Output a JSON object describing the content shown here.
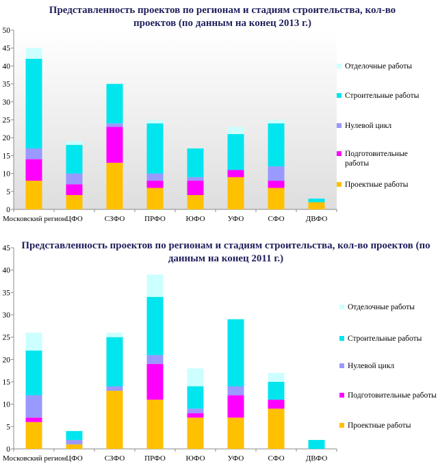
{
  "chart_data": [
    {
      "type": "bar",
      "stacked": true,
      "title": "Представленность  проектов по регионам и стадиям строительства, кол-во проектов  (по данным на конец 2013 г.)",
      "categories": [
        "Московский регион",
        "ЦФО",
        "СЗФО",
        "ПРФО",
        "ЮФО",
        "УФО",
        "СФО",
        "ДВФО"
      ],
      "ylim": [
        0,
        50
      ],
      "yticks": [
        0,
        5,
        10,
        15,
        20,
        25,
        30,
        35,
        40,
        45,
        50
      ],
      "grid": false,
      "legend_position": "right",
      "series": [
        {
          "name": "Проектные работы",
          "color": "#FFC000",
          "values": [
            8,
            4,
            13,
            6,
            4,
            9,
            6,
            2
          ]
        },
        {
          "name": "Подготовительные работы",
          "color": "#FF00FF",
          "values": [
            6,
            3,
            10,
            2,
            4,
            2,
            2,
            0
          ]
        },
        {
          "name": "Нулевой цикл",
          "color": "#9999FF",
          "values": [
            3,
            3,
            1,
            2,
            1,
            0,
            4,
            0
          ]
        },
        {
          "name": "Строительные работы",
          "color": "#00E5EE",
          "values": [
            25,
            8,
            11,
            14,
            8,
            10,
            12,
            1
          ]
        },
        {
          "name": "Отделочные работы",
          "color": "#CCFFFF",
          "values": [
            3,
            1,
            0,
            1,
            0,
            2,
            1,
            0
          ]
        }
      ]
    },
    {
      "type": "bar",
      "stacked": true,
      "title": "Представленность проектов по регионам и стадиям строительства, кол-во проектов (по данным на конец 2011 г.)",
      "categories": [
        "Московский регион",
        "ЦФО",
        "СЗФО",
        "ПРФО",
        "ЮФО",
        "УФО",
        "СФО",
        "ДВФО"
      ],
      "ylim": [
        0,
        45
      ],
      "yticks": [
        0,
        5,
        10,
        15,
        20,
        25,
        30,
        35,
        40,
        45
      ],
      "grid": false,
      "legend_position": "right",
      "series": [
        {
          "name": "Проектные работы",
          "color": "#FFC000",
          "values": [
            6,
            1,
            13,
            11,
            7,
            7,
            9,
            0
          ]
        },
        {
          "name": "Подготовительные работы",
          "color": "#FF00FF",
          "values": [
            1,
            0,
            0,
            8,
            1,
            5,
            2,
            0
          ]
        },
        {
          "name": "Нулевой цикл",
          "color": "#9999FF",
          "values": [
            5,
            1,
            1,
            2,
            1,
            2,
            0,
            0
          ]
        },
        {
          "name": "Строительные работы",
          "color": "#00E5EE",
          "values": [
            10,
            2,
            11,
            13,
            5,
            15,
            4,
            2
          ]
        },
        {
          "name": "Отделочные работы",
          "color": "#CCFFFF",
          "values": [
            4,
            0,
            1,
            5,
            4,
            0,
            2,
            0
          ]
        }
      ]
    }
  ]
}
